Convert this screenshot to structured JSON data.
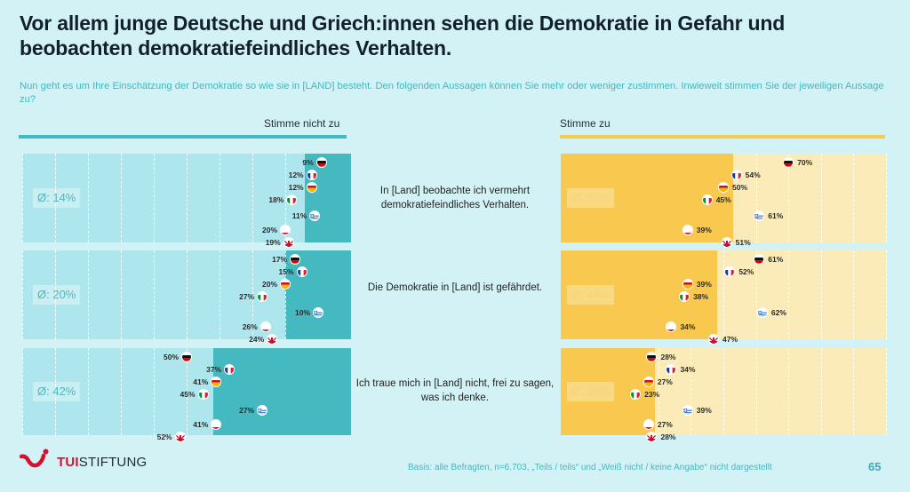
{
  "title": "Vor allem junge Deutsche und Griech:innen sehen die Demokratie in Gefahr und beobachten demokratiefeindliches Verhalten.",
  "subtitle": "Nun geht es um Ihre Einschätzung der Demokratie so wie sie in [LAND] besteht. Den folgenden Aussagen können Sie mehr oder weniger zustimmen. Inwieweit stimmen Sie der jeweiligen Aussage zu?",
  "colors": {
    "disagree_dark": "#45b9c0",
    "disagree_light": "#ade6ec",
    "agree_dark": "#f8c94e",
    "agree_light": "#fbebb8",
    "disagree_rule": "#45b9c0",
    "agree_rule": "#f5ca4f"
  },
  "footer": {
    "basis": "Basis: alle Befragten, n=6.703, „Teils / teils“ und „Weiß nicht / keine Angabe“ nicht dargestellt",
    "page": "65",
    "logo_tui": "TUI",
    "logo_stiftung": "STIFTUNG"
  },
  "chart_data": {
    "type": "bar",
    "title": "Vor allem junge Deutsche und Griech:innen sehen die Demokratie in Gefahr und beobachten demokratiefeindliches Verhalten.",
    "left_label": "Stimme nicht zu",
    "right_label": "Stimme zu",
    "xlim": [
      0,
      100
    ],
    "grid": true,
    "gridline_step": 10,
    "countries": [
      "Deutschland",
      "Frankreich",
      "Spanien",
      "Italien",
      "Griechenland",
      "Polen",
      "Großbritannien"
    ],
    "country_icons": [
      "flag-de-icon",
      "flag-fr-icon",
      "flag-es-icon",
      "flag-it-icon",
      "flag-gr-icon",
      "flag-pl-icon",
      "flag-gb-icon"
    ],
    "statements": [
      {
        "text": "In [Land] beobachte ich vermehrt demokratiefeindliches Verhalten.",
        "disagree": {
          "avg": 14,
          "avg_label": "Ø: 14%",
          "values": [
            9,
            12,
            12,
            18,
            11,
            20,
            19
          ]
        },
        "agree": {
          "avg": 53,
          "avg_label": "Ø: 53%",
          "values": [
            70,
            54,
            50,
            45,
            61,
            39,
            51
          ]
        }
      },
      {
        "text": "Die Demokratie in [Land] ist gefährdet.",
        "disagree": {
          "avg": 20,
          "avg_label": "Ø: 20%",
          "values": [
            17,
            15,
            20,
            27,
            10,
            26,
            24
          ]
        },
        "agree": {
          "avg": 48,
          "avg_label": "Ø: 48%",
          "values": [
            61,
            52,
            39,
            38,
            62,
            34,
            47
          ]
        }
      },
      {
        "text": "Ich traue mich in [Land] nicht, frei zu sagen, was ich denke.",
        "disagree": {
          "avg": 42,
          "avg_label": "Ø: 42%",
          "values": [
            50,
            37,
            41,
            45,
            27,
            41,
            52
          ]
        },
        "agree": {
          "avg": 29,
          "avg_label": "Ø: 29%",
          "values": [
            28,
            34,
            27,
            23,
            39,
            27,
            28
          ]
        }
      }
    ]
  }
}
